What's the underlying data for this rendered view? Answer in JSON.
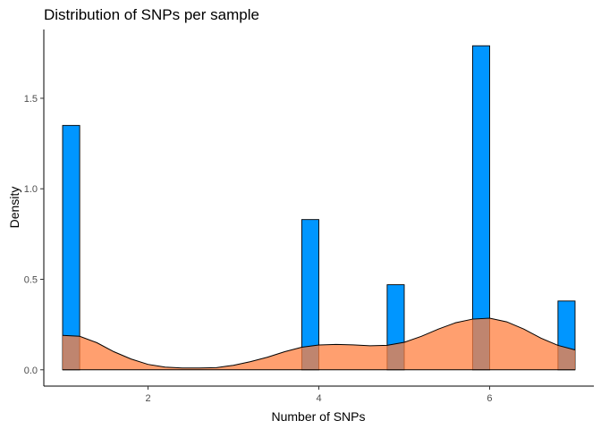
{
  "chart_data": {
    "type": "bar",
    "title": "Distribution of SNPs per sample",
    "xlabel": "Number of SNPs",
    "ylabel": "Density",
    "xlim": [
      0.78,
      7.22
    ],
    "ylim": [
      -0.09,
      1.88
    ],
    "x_ticks": [
      {
        "value": 2,
        "label": "2"
      },
      {
        "value": 4,
        "label": "4"
      },
      {
        "value": 6,
        "label": "6"
      }
    ],
    "y_ticks": [
      {
        "value": 0.0,
        "label": "0.0"
      },
      {
        "value": 0.5,
        "label": "0.5"
      },
      {
        "value": 1.0,
        "label": "1.0"
      },
      {
        "value": 1.5,
        "label": "1.5"
      }
    ],
    "histogram": {
      "bin_width": 0.2,
      "fill": "#0096FF",
      "bins": [
        {
          "x": 1.1,
          "density": 1.35
        },
        {
          "x": 3.9,
          "density": 0.83
        },
        {
          "x": 4.9,
          "density": 0.47
        },
        {
          "x": 5.9,
          "density": 1.79
        },
        {
          "x": 6.9,
          "density": 0.38
        }
      ]
    },
    "density_curve": {
      "fill": "#FF7F3F",
      "points": [
        [
          1.0,
          0.19
        ],
        [
          1.2,
          0.185
        ],
        [
          1.4,
          0.15
        ],
        [
          1.6,
          0.1
        ],
        [
          1.8,
          0.06
        ],
        [
          2.0,
          0.03
        ],
        [
          2.2,
          0.015
        ],
        [
          2.4,
          0.01
        ],
        [
          2.6,
          0.01
        ],
        [
          2.8,
          0.012
        ],
        [
          3.0,
          0.025
        ],
        [
          3.2,
          0.045
        ],
        [
          3.4,
          0.07
        ],
        [
          3.6,
          0.1
        ],
        [
          3.8,
          0.125
        ],
        [
          4.0,
          0.137
        ],
        [
          4.2,
          0.14
        ],
        [
          4.4,
          0.138
        ],
        [
          4.6,
          0.133
        ],
        [
          4.8,
          0.135
        ],
        [
          5.0,
          0.152
        ],
        [
          5.2,
          0.185
        ],
        [
          5.4,
          0.225
        ],
        [
          5.6,
          0.26
        ],
        [
          5.8,
          0.28
        ],
        [
          6.0,
          0.285
        ],
        [
          6.2,
          0.265
        ],
        [
          6.4,
          0.225
        ],
        [
          6.6,
          0.175
        ],
        [
          6.8,
          0.135
        ],
        [
          7.0,
          0.11
        ]
      ]
    },
    "grid": false
  }
}
